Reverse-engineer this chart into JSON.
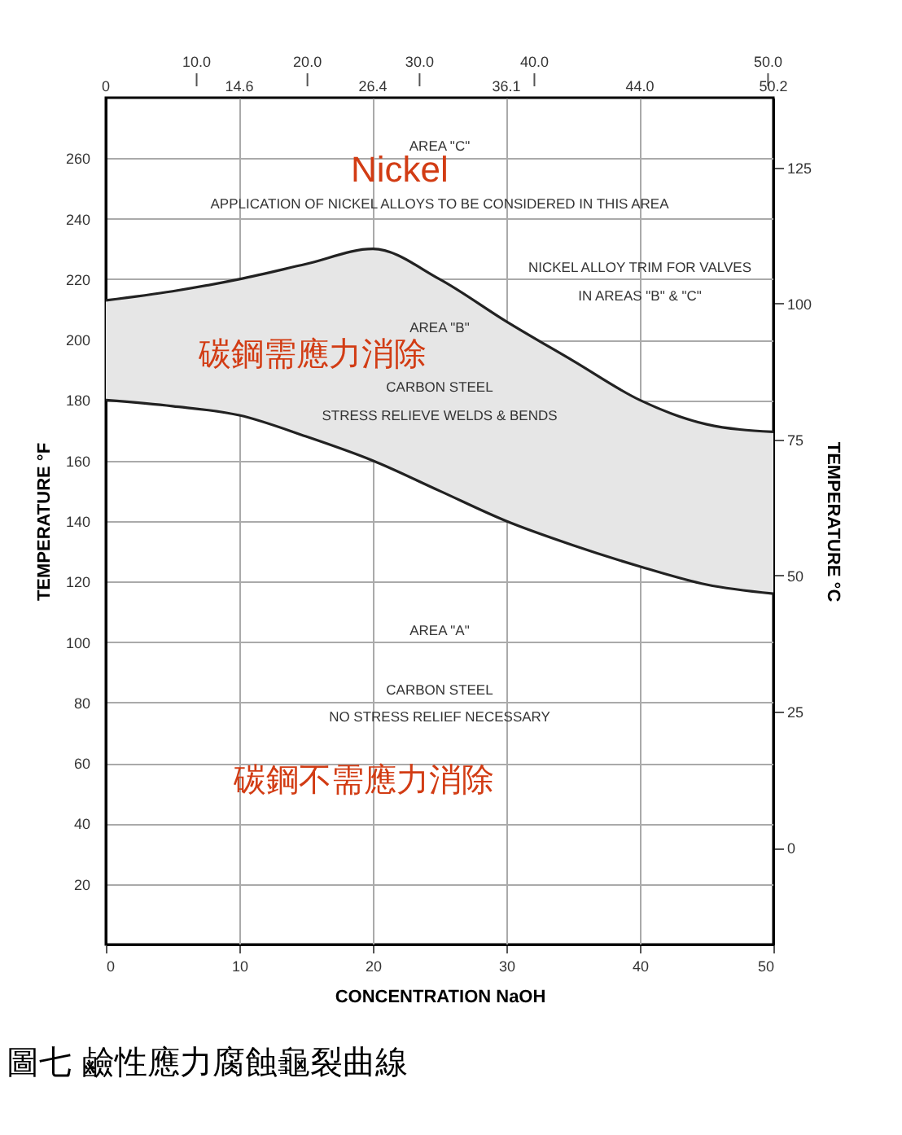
{
  "chart_data": {
    "type": "line",
    "xlabel": "CONCENTRATION NaOH",
    "ylabel": "TEMPERATURE °F",
    "y2label": "TEMPERATURE °C",
    "x": [
      0,
      5,
      10,
      15,
      20,
      25,
      30,
      35,
      40,
      45,
      50
    ],
    "series": [
      {
        "color": "#222222",
        "values": [
          213,
          216,
          220,
          225,
          230,
          220,
          206,
          193,
          180,
          172,
          169.5
        ],
        "lower": [
          180,
          178,
          175,
          168,
          160,
          150,
          140,
          132,
          125,
          119,
          116
        ],
        "upper": [
          213,
          216,
          220,
          225,
          230,
          220,
          206,
          193,
          180,
          172,
          169.5
        ]
      },
      {
        "color": "#222222",
        "values": [
          180,
          178,
          175,
          168,
          160,
          150,
          140,
          132,
          125,
          119,
          116
        ]
      }
    ],
    "xlim": [
      0,
      50
    ],
    "xticks": [
      0,
      10,
      20,
      30,
      40,
      50
    ],
    "ylim": [
      0,
      280
    ],
    "yticks": [
      20,
      40,
      60,
      80,
      100,
      120,
      140,
      160,
      180,
      200,
      220,
      240,
      260
    ],
    "y2lim": [
      -17.8,
      137.8
    ],
    "y2ticks": [
      0,
      25,
      50,
      75,
      100,
      125
    ],
    "grid": true,
    "annotations": [
      "10.0",
      "20.0",
      "30.0",
      "40.0",
      "50.0",
      "0",
      "14.6",
      "26.4",
      "36.1",
      "44.0",
      "50.2",
      "Nickel",
      "AREA \"C\"",
      "APPLICATION OF NICKEL ALLOYS TO BE CONSIDERED IN THIS AREA",
      "NICKEL ALLOY TRIM FOR VALVES",
      "IN AREAS \"B\" & \"C\"",
      "AREA \"B\"",
      "碳鋼需應力消除",
      "CARBON STEEL",
      "STRESS RELIEVE WELDS & BENDS",
      "AREA \"A\"",
      "CARBON STEEL",
      "NO STRESS RELIEF NECESSARY",
      "碳鋼不需應力消除",
      "圖七 鹼性應力腐蝕龜裂曲線"
    ]
  }
}
